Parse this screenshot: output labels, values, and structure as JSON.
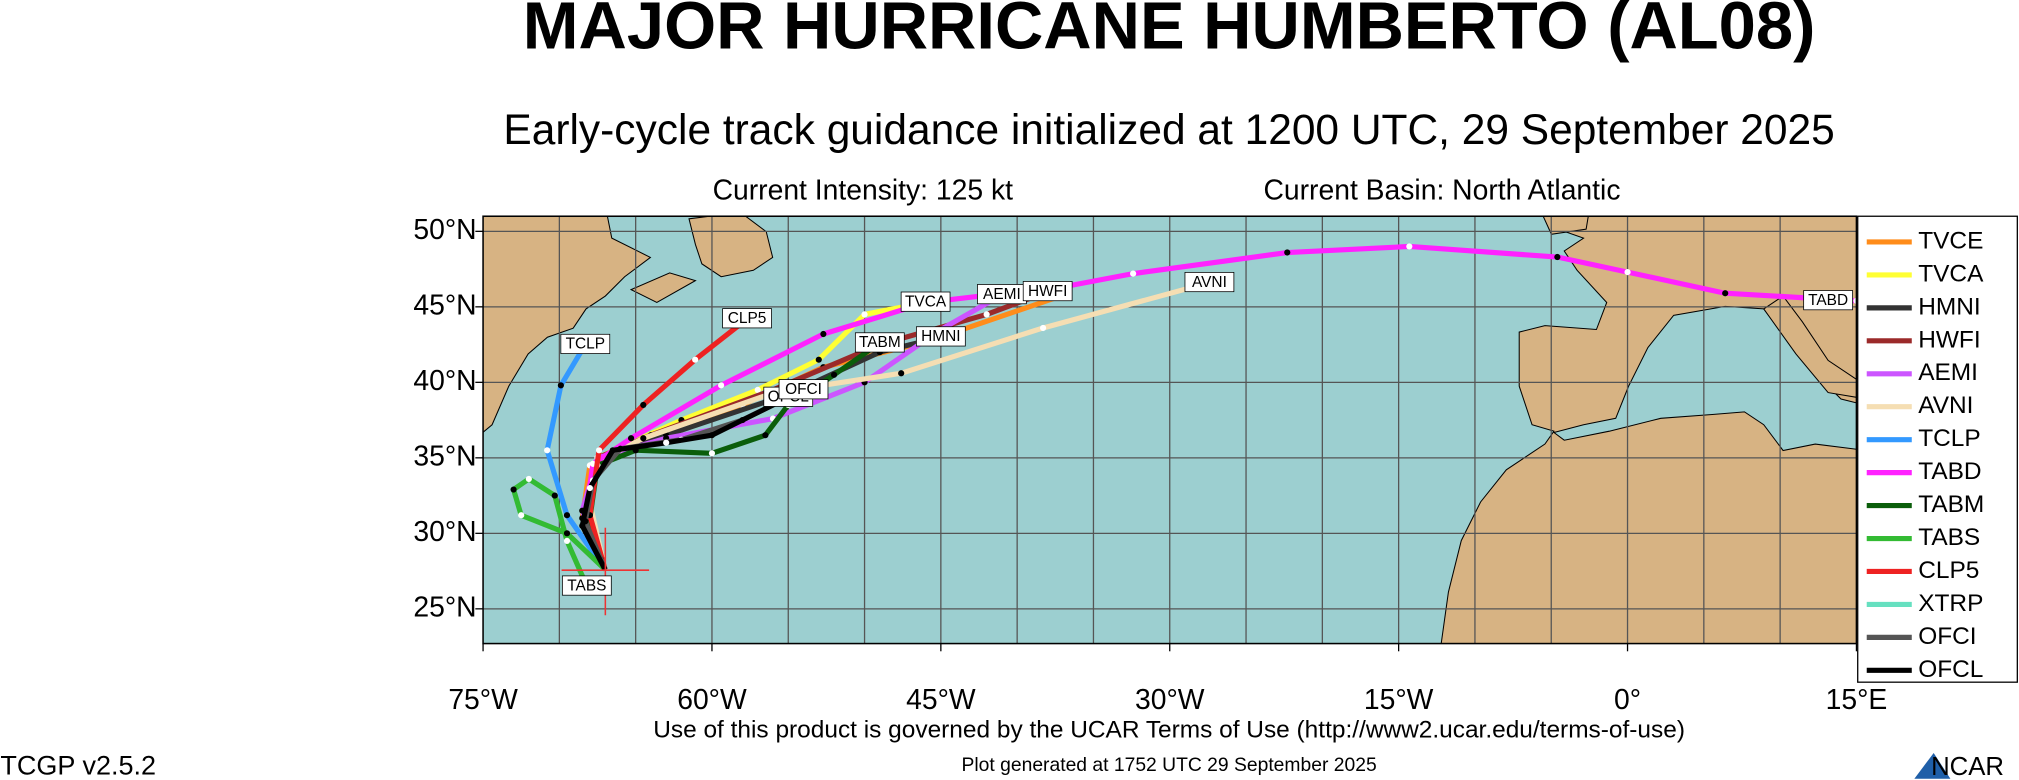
{
  "header": {
    "title": "MAJOR HURRICANE HUMBERTO (AL08)",
    "subtitle": "Early-cycle track guidance initialized at 1200 UTC, 29 September 2025",
    "intensity": "Current Intensity: 125 kt",
    "basin": "Current Basin: North Atlantic"
  },
  "map": {
    "lonlim": [
      -75,
      15
    ],
    "latlim": [
      22.7,
      51
    ],
    "lonticks": [
      {
        "value": -75,
        "label": "75°W"
      },
      {
        "value": -60,
        "label": "60°W"
      },
      {
        "value": -45,
        "label": "45°W"
      },
      {
        "value": -30,
        "label": "30°W"
      },
      {
        "value": -15,
        "label": "15°W"
      },
      {
        "value": 0,
        "label": "0°"
      },
      {
        "value": 15,
        "label": "15°E"
      }
    ],
    "latticks": [
      {
        "value": 50,
        "label": "50°N"
      },
      {
        "value": 45,
        "label": "45°N"
      },
      {
        "value": 40,
        "label": "40°N"
      },
      {
        "value": 35,
        "label": "35°N"
      },
      {
        "value": 30,
        "label": "30°N"
      },
      {
        "value": 25,
        "label": "25°N"
      }
    ],
    "gridlon": [
      -70,
      -65,
      -60,
      -55,
      -50,
      -45,
      -40,
      -35,
      -30,
      -25,
      -20,
      -15,
      -10,
      -5,
      0,
      5,
      10
    ],
    "gridlat": [
      50,
      45,
      40,
      35,
      30,
      25
    ]
  },
  "legend": {
    "models": [
      {
        "name": "TVCE",
        "color": "#ff8c1a",
        "lon": [
          -67.0,
          -68.5,
          -68.0,
          -65.0,
          -58.0,
          -52.7,
          -45.9,
          -36.6
        ],
        "lat": [
          27.6,
          31.0,
          34.5,
          36.0,
          38.5,
          41.0,
          42.7,
          45.9
        ]
      },
      {
        "name": "TVCA",
        "color": "#ffff33",
        "lon": [
          -67.0,
          -68.0,
          -67.5,
          -62.0,
          -57.0,
          -53.0,
          -50.0,
          -46.0
        ],
        "lat": [
          27.6,
          31.0,
          35.0,
          37.5,
          39.5,
          41.5,
          44.5,
          45.3
        ]
      },
      {
        "name": "HMNI",
        "color": "#333333",
        "lon": [
          -67.0,
          -68.2,
          -67.5,
          -63.0,
          -55.0,
          -49.0,
          -45.0
        ],
        "lat": [
          27.6,
          31.5,
          35.0,
          36.5,
          39.2,
          42.0,
          43.0
        ]
      },
      {
        "name": "HWFI",
        "color": "#9b2a2a",
        "lon": [
          -67.0,
          -68.0,
          -67.5,
          -64.0,
          -56.0,
          -49.0,
          -42.0,
          -38.0
        ],
        "lat": [
          27.6,
          31.5,
          35.0,
          36.5,
          39.5,
          42.5,
          44.5,
          46.0
        ]
      },
      {
        "name": "AEMI",
        "color": "#cc55ff",
        "lon": [
          -67.0,
          -68.5,
          -67.5,
          -63.0,
          -56.0,
          -50.0,
          -45.0,
          -41.0
        ],
        "lat": [
          27.6,
          31.5,
          35.0,
          36.3,
          37.6,
          40.0,
          43.5,
          45.8
        ]
      },
      {
        "name": "AVNI",
        "color": "#f5deb3",
        "lon": [
          -67.0,
          -68.0,
          -67.8,
          -64.5,
          -56.0,
          -47.6,
          -38.3,
          -27.4
        ],
        "lat": [
          27.6,
          32.0,
          34.6,
          36.3,
          39.3,
          40.6,
          43.6,
          46.6
        ]
      },
      {
        "name": "TCLP",
        "color": "#3399ff",
        "lon": [
          -67.0,
          -69.5,
          -70.8,
          -69.9,
          -68.3
        ],
        "lat": [
          27.6,
          31.2,
          35.5,
          39.8,
          42.5
        ]
      },
      {
        "name": "TABD",
        "color": "#ff22ff",
        "lon": [
          -67.0,
          -68.3,
          -67.8,
          -65.3,
          -59.4,
          -52.7,
          -45.9,
          -36.6,
          -32.4,
          -22.3,
          -14.3,
          -4.6,
          0.0,
          6.4,
          15.0
        ],
        "lat": [
          27.6,
          31.2,
          34.6,
          36.3,
          39.8,
          43.2,
          45.3,
          46.4,
          47.2,
          48.6,
          49.0,
          48.3,
          47.3,
          45.9,
          45.4
        ]
      },
      {
        "name": "TABM",
        "color": "#0b5e0b",
        "lon": [
          -67.0,
          -68.0,
          -67.5,
          -65.0,
          -60.0,
          -56.5,
          -55.0,
          -52.0,
          -49.0
        ],
        "lat": [
          27.6,
          31.0,
          34.5,
          35.5,
          35.3,
          36.5,
          38.5,
          40.5,
          42.6
        ]
      },
      {
        "name": "TABS",
        "color": "#33bb33",
        "lon": [
          -67.0,
          -69.5,
          -72.5,
          -73.0,
          -72.0,
          -70.3,
          -69.5,
          -68.2
        ],
        "lat": [
          27.6,
          30.0,
          31.2,
          32.9,
          33.6,
          32.5,
          29.5,
          26.5
        ]
      },
      {
        "name": "CLP5",
        "color": "#ee2222",
        "lon": [
          -67.0,
          -68.0,
          -67.4,
          -64.5,
          -61.1,
          -57.7
        ],
        "lat": [
          27.6,
          31.2,
          35.5,
          38.5,
          41.5,
          44.2
        ]
      },
      {
        "name": "XTRP",
        "color": "#66e0c0",
        "lon": [
          -67.0,
          -67.3
        ],
        "lat": [
          27.6,
          28.3
        ]
      },
      {
        "name": "OFCI",
        "color": "#555555",
        "lon": [
          -67.0,
          -68.3,
          -67.8,
          -66.0,
          -62.0,
          -58.0,
          -54.0
        ],
        "lat": [
          27.6,
          30.8,
          33.5,
          35.6,
          36.2,
          37.5,
          39.5
        ]
      },
      {
        "name": "OFCL",
        "color": "#000000",
        "lon": [
          -67.0,
          -68.5,
          -68.0,
          -66.5,
          -63.0,
          -60.0,
          -55.0
        ],
        "lat": [
          27.6,
          30.5,
          33.0,
          35.5,
          36.0,
          36.5,
          39.0
        ]
      }
    ]
  },
  "track_labels": [
    "TVCA",
    "AEMI",
    "HWFI",
    "AVNI",
    "TABD",
    "CLP5",
    "TCLP",
    "TABM",
    "HMNI",
    "OFCL",
    "OFCI",
    "TABS"
  ],
  "footer": {
    "terms": "Use of this product is governed by the UCAR Terms of Use (http://www2.ucar.edu/terms-of-use)",
    "generated": "Plot generated at 1752 UTC   29 September 2025",
    "version": "TCGP v2.5.2",
    "logo": "NCAR"
  }
}
